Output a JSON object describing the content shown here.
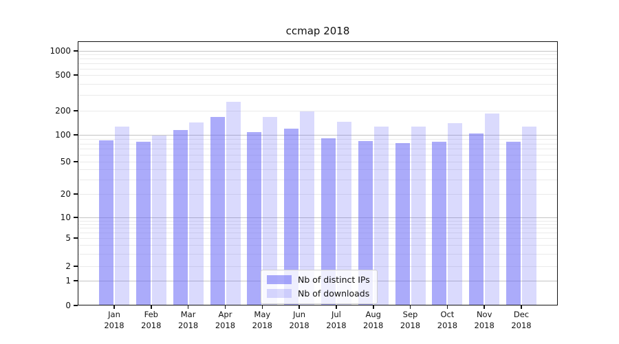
{
  "chart_data": {
    "type": "bar",
    "title": "ccmap 2018",
    "categories": [
      "Jan",
      "Feb",
      "Mar",
      "Apr",
      "May",
      "Jun",
      "Jul",
      "Aug",
      "Sep",
      "Oct",
      "Nov",
      "Dec"
    ],
    "category_year": "2018",
    "series": [
      {
        "key": "distinct-ips",
        "name": "Nb of distinct IPs",
        "color": "rgba(102,102,245,0.55)",
        "values": [
          87,
          84,
          115,
          167,
          108,
          119,
          92,
          85,
          81,
          84,
          104,
          84
        ]
      },
      {
        "key": "downloads",
        "name": "Nb of downloads",
        "color": "rgba(102,102,245,0.24)",
        "values": [
          127,
          99,
          143,
          252,
          168,
          195,
          147,
          126,
          128,
          140,
          186,
          127
        ]
      }
    ],
    "y_axis": {
      "scale": "symlog",
      "tick_labels": [
        0,
        1,
        2,
        5,
        10,
        20,
        50,
        100,
        200,
        500,
        1000
      ],
      "major_gridlines": [
        1,
        10,
        100,
        1000
      ],
      "minor_gridline_decades": [
        1,
        10,
        100
      ]
    },
    "legend": {
      "position": "lower center",
      "entries": [
        "Nb of distinct IPs",
        "Nb of downloads"
      ]
    },
    "grid": {
      "major": true,
      "minor": true
    }
  }
}
